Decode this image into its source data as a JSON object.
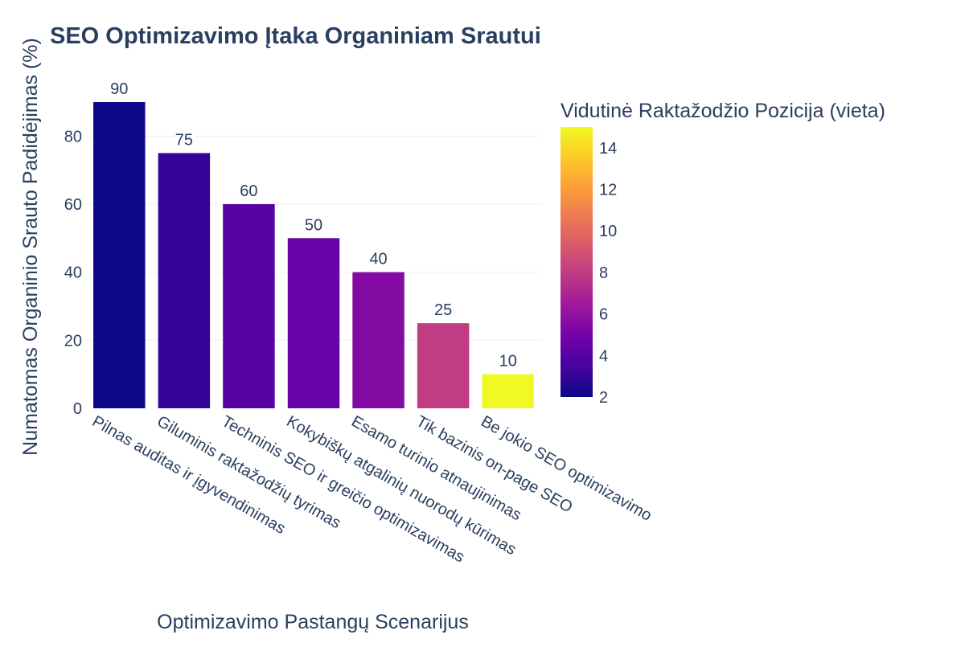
{
  "chart_data": {
    "type": "bar",
    "title": "SEO Optimizavimo Įtaka Organiniam Srautui",
    "xlabel": "Optimizavimo Pastangų Scenarijus",
    "ylabel": "Numatomas Organinio Srauto Padidėjimas (%)",
    "categories": [
      "Pilnas auditas ir įgyvendinimas",
      "Giluminis raktažodžių tyrimas",
      "Techninis SEO ir greičio optimizavimas",
      "Kokybiškų atgalinių nuorodų kūrimas",
      "Esamo turinio atnaujinimas",
      "Tik bazinis on-page SEO",
      "Be jokio SEO optimizavimo"
    ],
    "values": [
      90,
      75,
      60,
      50,
      40,
      25,
      10
    ],
    "value_labels": [
      "90",
      "75",
      "60",
      "50",
      "40",
      "25",
      "10"
    ],
    "color_values": [
      2,
      3,
      4,
      4.5,
      5.5,
      8,
      15
    ],
    "ylim": [
      0,
      90
    ],
    "yticks": [
      0,
      20,
      40,
      60,
      80
    ],
    "ytick_labels": [
      "0",
      "20",
      "40",
      "60",
      "80"
    ],
    "grid": true,
    "colorbar": {
      "title": "Vidutinė Raktažodžio Pozicija (vieta)",
      "range": [
        2,
        15
      ],
      "ticks": [
        2,
        4,
        6,
        8,
        10,
        12,
        14
      ],
      "tick_labels": [
        "2",
        "4",
        "6",
        "8",
        "10",
        "12",
        "14"
      ],
      "colorscale": [
        "#0d0887",
        "#46039f",
        "#7201a8",
        "#9c179e",
        "#bd3786",
        "#d8576b",
        "#ed7953",
        "#fb9f3a",
        "#fdca26",
        "#f0f921"
      ]
    }
  }
}
